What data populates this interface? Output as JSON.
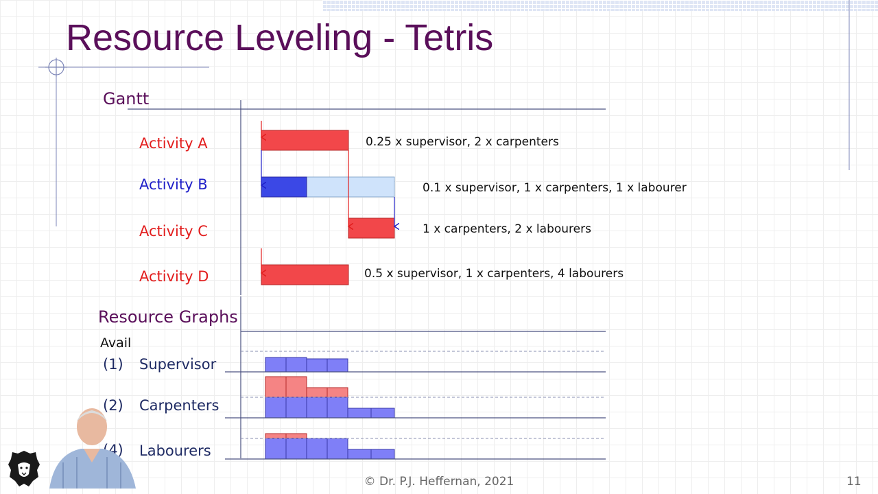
{
  "slide": {
    "title": "Resource Leveling - Tetris",
    "gantt_heading": "Gantt",
    "resource_heading": "Resource Graphs",
    "avail_label": "Avail",
    "footer": "© Dr. P.J. Heffernan, 2021",
    "page_number": "11"
  },
  "activities": [
    {
      "label": "Activity A",
      "resources": "0.25 x supervisor, 2 x carpenters",
      "color": "#e21d1d"
    },
    {
      "label": "Activity B",
      "resources": "0.1 x supervisor, 1 x carpenters, 1 x labourer",
      "color": "#1f1fc8"
    },
    {
      "label": "Activity C",
      "resources": "1 x carpenters, 2 x labourers",
      "color": "#e21d1d"
    },
    {
      "label": "Activity D",
      "resources": "0.5 x supervisor, 1 x carpenters, 4 labourers",
      "color": "#e21d1d"
    }
  ],
  "resources": [
    {
      "avail": "(1)",
      "name": "Supervisor"
    },
    {
      "avail": "(2)",
      "name": "Carpenters"
    },
    {
      "avail": "(4)",
      "name": "Labourers"
    }
  ],
  "colors": {
    "title": "#5a0f5a",
    "bar_red": "#f2474a",
    "bar_blue": "#3b48e6",
    "bar_blue_light": "#cfe3fb",
    "graph_blue": "#7f7ff7",
    "graph_red": "#f58484",
    "axis": "#4a5080"
  },
  "icons": {
    "crosshair": "crosshair-icon",
    "logo": "lion-logo-icon"
  }
}
